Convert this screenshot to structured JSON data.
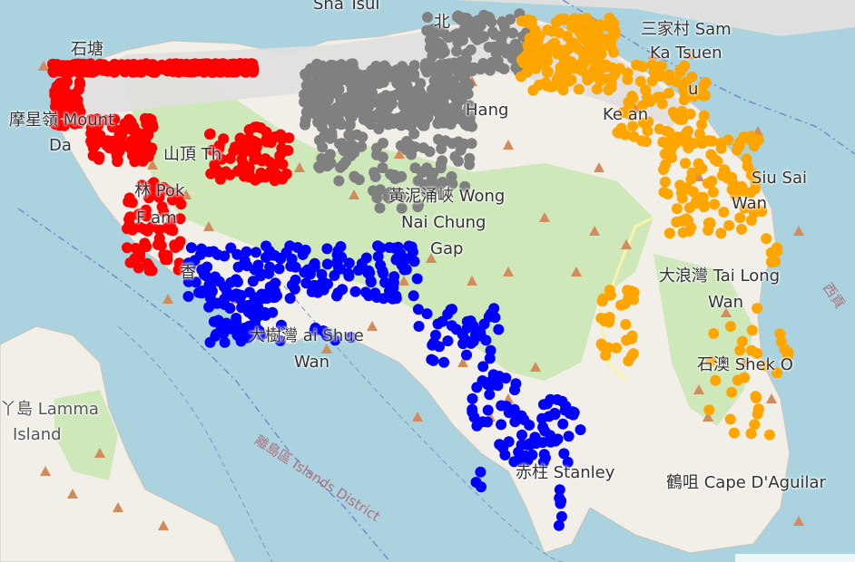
{
  "map": {
    "labels": {
      "sha_tsui": "Sha Tsui",
      "north_point": "北",
      "sam_ka_tsuen_zh": "三家村 Sam",
      "sam_ka_tsuen_en": "Ka Tsuen",
      "shek_tong_tsui": "石塘",
      "mount_davis_zh": "摩星嶺 Mount",
      "mount_davis_en": "Da",
      "the_peak": "山頂 Th",
      "pok_fu_lam_1": "林 Pok",
      "pok_fu_lam_2": "F  am",
      "hang": "Hang",
      "kei_wan": "Ke  an",
      "u": "u",
      "siu_sai_wan_1": "Siu Sai",
      "siu_sai_wan_2": "Wan",
      "wong_nai_chung_1": "黃泥涌峽 Wong",
      "wong_nai_chung_2": "Nai Chung",
      "wong_nai_chung_3": "Gap",
      "aberdeen": "香",
      "tai_long_wan_1": "大浪灣 Tai Long",
      "tai_long_wan_2": "Wan",
      "repulse_bay_1": "大樹灣  ai Shue",
      "repulse_bay_2": "Wan",
      "lamma_1": "丫島 Lamma",
      "lamma_2": "Island",
      "shek_o": "石澳 Shek O",
      "stanley": "赤柱 Stanley",
      "cape_daguilar": "鶴咀 Cape D'Aguilar",
      "islands_district": "離島區 Islands District",
      "sai_kung": "西貢"
    },
    "colors": {
      "sea": "#aad3df",
      "land": "#f2efe9",
      "park": "#c8e6b2",
      "urban": "#e0dfdf",
      "peak_marker": "#d38b5b",
      "boundary": "#7a89c8",
      "ferry": "#7a95c8"
    },
    "clusters": [
      {
        "name": "red",
        "color": "#ff0000"
      },
      {
        "name": "gray",
        "color": "#808080"
      },
      {
        "name": "orange",
        "color": "#ffa500"
      },
      {
        "name": "blue",
        "color": "#0000ff"
      }
    ]
  }
}
